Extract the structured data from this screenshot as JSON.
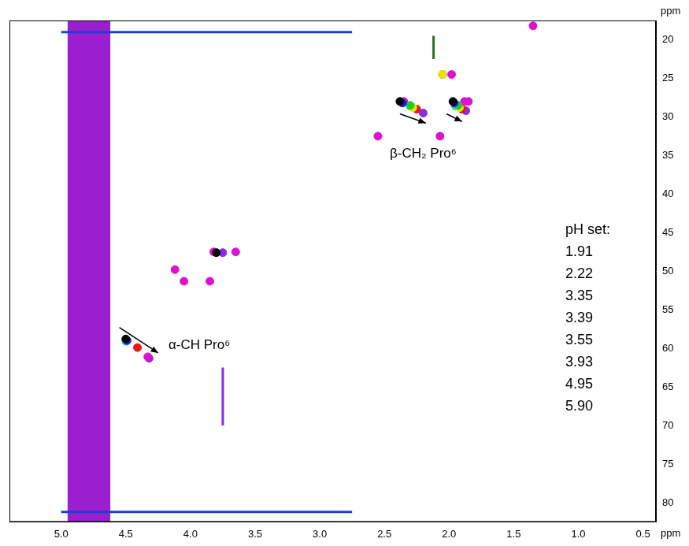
{
  "chart_data": {
    "type": "scatter",
    "x_label": "ppm",
    "y_label": "ppm",
    "xlim": [
      0.4,
      5.4
    ],
    "ylim": [
      17.5,
      82.5
    ],
    "xticks": [
      {
        "value": 5.0,
        "label": "5.0"
      },
      4.5,
      {
        "value": 4.0,
        "label": "4.0"
      },
      3.5,
      {
        "value": 3.0,
        "label": "3.0"
      },
      2.5,
      {
        "value": 2.0,
        "label": "2.0"
      },
      1.5,
      {
        "value": 1.0,
        "label": "1.0"
      },
      0.5
    ],
    "yticks": [
      20,
      25,
      30,
      35,
      40,
      45,
      50,
      55,
      60,
      65,
      70,
      75,
      80
    ],
    "grid": false,
    "legend": "right",
    "legend_title": "pH set:",
    "series": [
      {
        "name": "1.91",
        "color": "#000000",
        "x": [
          4.5,
          2.38,
          1.97,
          3.8
        ],
        "y": [
          58.8,
          28.0,
          28.0,
          47.6
        ]
      },
      {
        "name": "2.22",
        "color": "#1a1aff",
        "x": [
          4.49,
          2.36,
          1.96
        ],
        "y": [
          59.0,
          28.2,
          28.2
        ]
      },
      {
        "name": "3.35",
        "color": "#22cc22",
        "x": [
          2.3,
          1.93
        ],
        "y": [
          28.5,
          28.5
        ]
      },
      {
        "name": "3.39",
        "color": "#e6e600",
        "x": [
          2.28,
          1.92,
          2.05
        ],
        "y": [
          28.8,
          28.8,
          24.5
        ]
      },
      {
        "name": "3.55",
        "color": "#e41a1c",
        "x": [
          4.41,
          2.25,
          1.9
        ],
        "y": [
          59.9,
          29.0,
          29.0
        ]
      },
      {
        "name": "3.93",
        "color": "#33c8e8",
        "x": [
          4.5,
          2.3,
          1.95
        ],
        "y": [
          59.1,
          28.6,
          28.6
        ]
      },
      {
        "name": "4.95",
        "color": "#e010d0",
        "x": [
          4.33,
          2.35,
          1.88,
          2.55,
          2.07,
          3.82,
          3.65,
          4.12,
          4.05,
          3.85,
          2.05,
          1.98,
          1.85,
          1.35
        ],
        "y": [
          61.1,
          28.0,
          28.0,
          32.5,
          32.5,
          47.5,
          47.5,
          49.8,
          51.3,
          51.3,
          24.5,
          24.5,
          28.0,
          18.2
        ]
      },
      {
        "name": "5.90",
        "color": "#8a2be2",
        "x": [
          4.32,
          2.2,
          1.87,
          3.75
        ],
        "y": [
          61.3,
          29.5,
          29.2,
          47.6
        ]
      }
    ],
    "streaks": [
      {
        "x": [
          5.0,
          2.75
        ],
        "y": [
          19.0,
          19.0
        ],
        "color": "#1f3fd0"
      },
      {
        "x": [
          5.0,
          2.75
        ],
        "y": [
          81.2,
          81.2
        ],
        "color": "#1f3fd0"
      },
      {
        "x": [
          2.12,
          2.12
        ],
        "y": [
          19.5,
          22.5
        ],
        "color": "#2e6b2e"
      },
      {
        "x": [
          3.75,
          3.75
        ],
        "y": [
          62.5,
          70.0
        ],
        "color": "#8a2be2"
      }
    ],
    "bands": [
      {
        "x": [
          4.62,
          4.95
        ],
        "color": "#9b1fd0"
      }
    ],
    "annotations": [
      {
        "text": "α-CH Pro⁶",
        "at": [
          4.17,
          59.6
        ],
        "arrow_from": [
          4.55,
          57.3
        ],
        "arrow_to": [
          4.25,
          60.6
        ]
      },
      {
        "text": "β-CH₂ Pro⁶",
        "at": [
          2.2,
          34.8
        ],
        "arrows": [
          {
            "from": [
              2.38,
              29.6
            ],
            "to": [
              2.18,
              30.8
            ]
          },
          {
            "from": [
              2.02,
              29.6
            ],
            "to": [
              1.9,
              30.6
            ]
          }
        ]
      }
    ]
  }
}
